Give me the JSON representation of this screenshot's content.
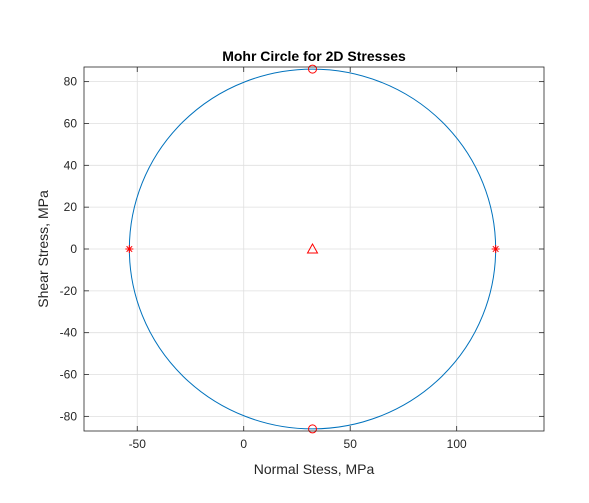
{
  "chart_data": {
    "type": "scatter",
    "title": "Mohr Circle for 2D Stresses",
    "xlabel": "Normal Stess, MPa",
    "ylabel": "Shear Stress, MPa",
    "xlim": [
      -75,
      141
    ],
    "ylim": [
      -87,
      87
    ],
    "xticks": [
      -50,
      0,
      50,
      100
    ],
    "yticks": [
      -80,
      -60,
      -40,
      -20,
      0,
      20,
      40,
      60,
      80
    ],
    "grid": true,
    "circle": {
      "center": [
        32.3,
        0
      ],
      "radius": 86,
      "color": "#0072BD"
    },
    "markers": [
      {
        "symbol": "asterisk",
        "color": "#FF0000",
        "points": [
          [
            -53.7,
            0
          ],
          [
            118.3,
            0
          ]
        ]
      },
      {
        "symbol": "circle",
        "color": "#FF0000",
        "points": [
          [
            32.3,
            86
          ],
          [
            32.3,
            -86
          ]
        ]
      },
      {
        "symbol": "triangle",
        "color": "#FF0000",
        "points": [
          [
            32.3,
            0
          ]
        ]
      }
    ]
  }
}
